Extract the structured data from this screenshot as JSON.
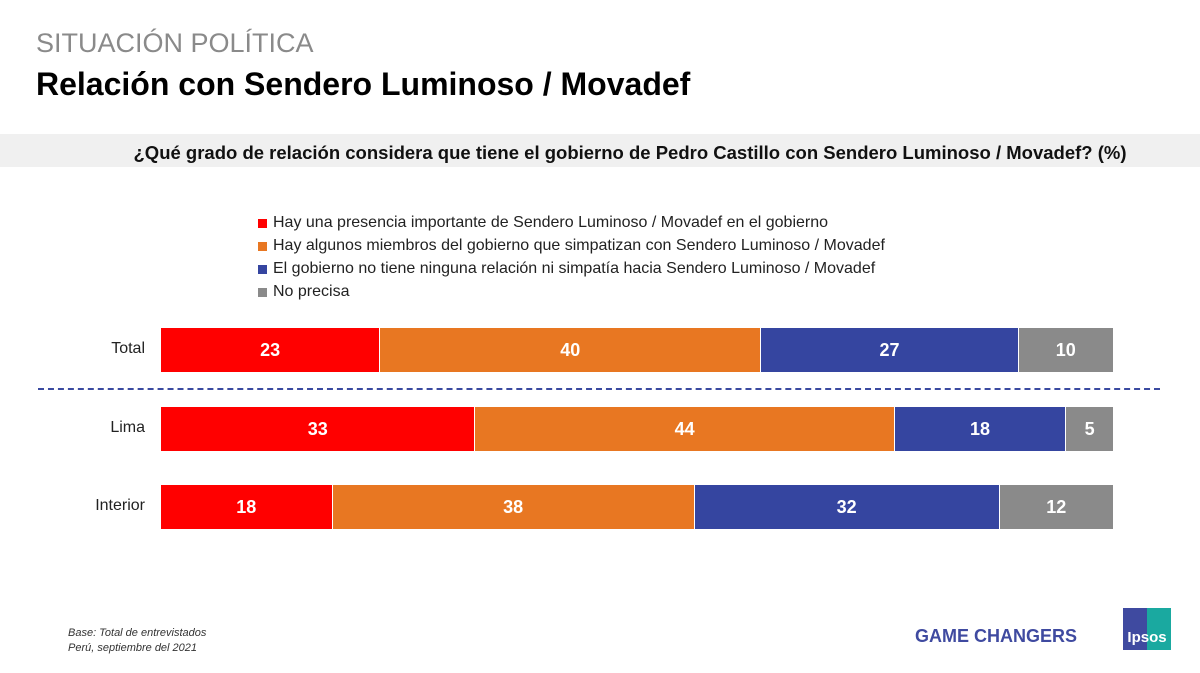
{
  "header": {
    "kicker": "SITUACIÓN POLÍTICA",
    "title": "Relación con Sendero Luminoso / Movadef"
  },
  "chart_data": {
    "type": "bar",
    "orientation": "horizontal",
    "stacked": true,
    "unit": "%",
    "title": "¿Qué grado de relación considera que tiene el gobierno de Pedro Castillo con Sendero Luminoso / Movadef? (%)",
    "categories": [
      "Total",
      "Lima",
      "Interior"
    ],
    "series": [
      {
        "name": "Hay una presencia importante de Sendero Luminoso / Movadef en el gobierno",
        "color": "#ff0000",
        "values": [
          23,
          33,
          18
        ]
      },
      {
        "name": "Hay algunos miembros del gobierno que simpatizan con Sendero Luminoso / Movadef",
        "color": "#e87722",
        "values": [
          40,
          44,
          38
        ]
      },
      {
        "name": "El gobierno no tiene ninguna relación ni simpatía hacia Sendero Luminoso / Movadef",
        "color": "#3545a0",
        "values": [
          27,
          18,
          32
        ]
      },
      {
        "name": "No precisa",
        "color": "#8a8a8a",
        "values": [
          10,
          5,
          12
        ]
      }
    ],
    "legend": "top"
  },
  "footer": {
    "base_line1": "Base: Total de entrevistados",
    "base_line2": "Perú, septiembre del 2021",
    "tagline": "GAME CHANGERS",
    "logo": "Ipsos"
  }
}
